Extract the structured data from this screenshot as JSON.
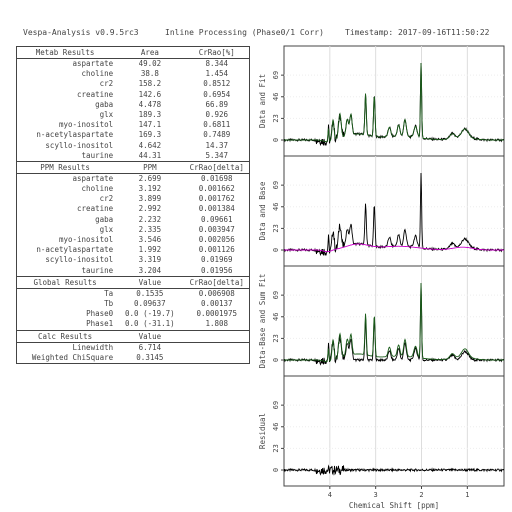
{
  "header": {
    "program": "Vespa-Analysis v0.9.5rc3",
    "mode": "Inline Processing (Phase0/1 Corr)",
    "timestamp": "Timestamp: 2017-09-16T11:50:22"
  },
  "metab_results": {
    "headers": [
      "Metab Results",
      "Area",
      "CrRao[%]"
    ],
    "rows": [
      [
        "aspartate",
        "49.02",
        "8.344"
      ],
      [
        "choline",
        "38.8",
        "1.454"
      ],
      [
        "cr2",
        "158.2",
        "0.8512"
      ],
      [
        "creatine",
        "142.6",
        "0.6954"
      ],
      [
        "gaba",
        "4.478",
        "66.89"
      ],
      [
        "glx",
        "189.3",
        "0.926"
      ],
      [
        "myo-inositol",
        "147.1",
        "0.6811"
      ],
      [
        "n-acetylaspartate",
        "169.3",
        "0.7489"
      ],
      [
        "scyllo-inositol",
        "4.642",
        "14.37"
      ],
      [
        "taurine",
        "44.31",
        "5.347"
      ]
    ]
  },
  "ppm_results": {
    "headers": [
      "PPM Results",
      "PPM",
      "CrRao[delta]"
    ],
    "rows": [
      [
        "aspartate",
        "2.699",
        "0.01698"
      ],
      [
        "choline",
        "3.192",
        "0.001662"
      ],
      [
        "cr2",
        "3.899",
        "0.001762"
      ],
      [
        "creatine",
        "2.992",
        "0.001384"
      ],
      [
        "gaba",
        "2.232",
        "0.09661"
      ],
      [
        "glx",
        "2.335",
        "0.003947"
      ],
      [
        "myo-inositol",
        "3.546",
        "0.002056"
      ],
      [
        "n-acetylaspartate",
        "1.992",
        "0.001126"
      ],
      [
        "scyllo-inositol",
        "3.319",
        "0.01969"
      ],
      [
        "taurine",
        "3.204",
        "0.01956"
      ]
    ]
  },
  "global_results": {
    "headers": [
      "Global Results",
      "Value",
      "CrRao[delta]"
    ],
    "rows": [
      [
        "Ta",
        "0.1535",
        "0.006908"
      ],
      [
        "Tb",
        "0.09637",
        "0.00137"
      ],
      [
        "Phase0",
        "0.0 (-19.7)",
        "0.0001975"
      ],
      [
        "Phase1",
        "0.0 (-31.1)",
        "1.808"
      ]
    ]
  },
  "calc_results": {
    "headers": [
      "Calc Results",
      "Value",
      ""
    ],
    "rows": [
      [
        "Linewidth",
        "6.714",
        ""
      ],
      [
        "Weighted ChiSquare",
        "0.3145",
        ""
      ]
    ]
  },
  "chart_data": {
    "type": "line",
    "xlabel": "Chemical Shift [ppm]",
    "xlim": [
      5.0,
      0.2
    ],
    "xticks": [
      4,
      3,
      2,
      1
    ],
    "yticks": [
      0,
      23,
      46,
      69
    ],
    "ylim": [
      -17,
      100
    ],
    "grid": true,
    "colors": {
      "data": "#000000",
      "fit": "#1a5c1a",
      "base": "#cc00cc"
    },
    "peaks": [
      {
        "ppm": 4.03,
        "height": 14,
        "width": 0.015
      },
      {
        "ppm": 3.93,
        "height": 22,
        "width": 0.03
      },
      {
        "ppm": 3.78,
        "height": 26,
        "width": 0.04
      },
      {
        "ppm": 3.62,
        "height": 18,
        "width": 0.04
      },
      {
        "ppm": 3.54,
        "height": 22,
        "width": 0.035
      },
      {
        "ppm": 3.22,
        "height": 44,
        "width": 0.022
      },
      {
        "ppm": 3.03,
        "height": 44,
        "width": 0.022
      },
      {
        "ppm": 2.7,
        "height": 10,
        "width": 0.04
      },
      {
        "ppm": 2.5,
        "height": 12,
        "width": 0.04
      },
      {
        "ppm": 2.36,
        "height": 18,
        "width": 0.04
      },
      {
        "ppm": 2.13,
        "height": 12,
        "width": 0.05
      },
      {
        "ppm": 2.01,
        "height": 80,
        "width": 0.018
      },
      {
        "ppm": 1.33,
        "height": 5,
        "width": 0.07
      },
      {
        "ppm": 1.05,
        "height": 9,
        "width": 0.1
      }
    ],
    "panels": [
      {
        "ylabel": "Data and Fit",
        "series": [
          "data",
          "fit"
        ]
      },
      {
        "ylabel": "Data and Base",
        "series": [
          "data",
          "base"
        ]
      },
      {
        "ylabel": "Data-Base and Sum Fit",
        "series": [
          "data-base",
          "fit"
        ]
      },
      {
        "ylabel": "Residual",
        "series": [
          "residual"
        ]
      }
    ]
  }
}
